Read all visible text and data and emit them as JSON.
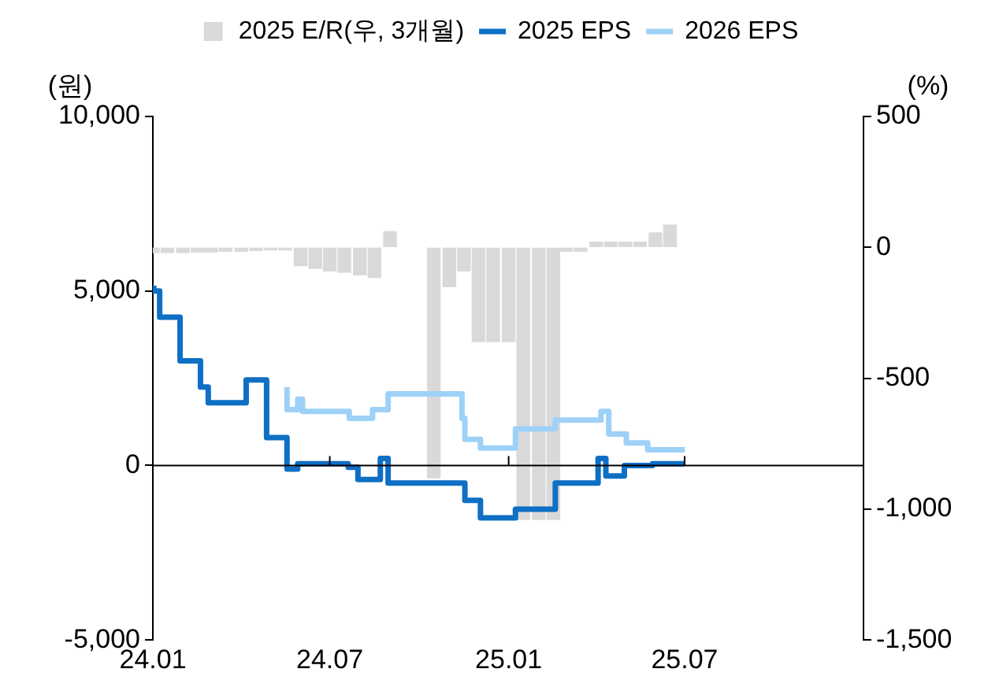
{
  "chart_data": {
    "type": "step",
    "ylabel": "(원)",
    "y2label": "(%)",
    "legend": "top",
    "xlim": [
      "2024-01-01",
      "2026-01-01"
    ],
    "xticks": [
      {
        "value": "2024-01-01",
        "label": "24.01"
      },
      {
        "value": "2024-07-01",
        "label": "24.07"
      },
      {
        "value": "2025-01-01",
        "label": "25.01"
      },
      {
        "value": "2025-07-01",
        "label": "25.07"
      }
    ],
    "ylim": [
      -5000,
      10000
    ],
    "yticks": [
      {
        "value": -5000,
        "label": "-5,000"
      },
      0,
      {
        "value": 5000,
        "label": "5,000"
      },
      {
        "value": 10000,
        "label": "10,000"
      }
    ],
    "y2lim": [
      -1500,
      500
    ],
    "y2ticks": [
      {
        "value": -1500,
        "label": "-1,500"
      },
      {
        "value": -1000,
        "label": "-1,000"
      },
      -500,
      0,
      500
    ],
    "ref_lines": [
      {
        "axis": "y",
        "value": 0,
        "color": "#000000"
      }
    ],
    "series": [
      {
        "name": "2025 E/R(우, 3개월)",
        "type": "bar",
        "axis": "y2",
        "color": "#d9d9d9",
        "x": [
          "2024-01-01",
          "2024-01-16",
          "2024-02-01",
          "2024-02-16",
          "2024-03-01",
          "2024-03-16",
          "2024-04-01",
          "2024-04-16",
          "2024-05-01",
          "2024-05-16",
          "2024-06-01",
          "2024-06-16",
          "2024-07-01",
          "2024-07-16",
          "2024-08-01",
          "2024-08-16",
          "2024-09-01",
          "2024-09-16",
          "2024-10-01",
          "2024-10-16",
          "2024-11-01",
          "2024-11-16",
          "2024-12-01",
          "2024-12-16",
          "2025-01-01",
          "2025-01-16",
          "2025-02-01",
          "2025-02-16",
          "2025-03-01",
          "2025-03-16",
          "2025-04-01",
          "2025-04-16",
          "2025-05-01",
          "2025-05-16",
          "2025-06-01",
          "2025-06-16"
        ],
        "values": [
          -20,
          -20,
          -20,
          -18,
          -18,
          -15,
          -15,
          -12,
          -10,
          -10,
          -70,
          -80,
          -90,
          -95,
          -105,
          -115,
          60,
          null,
          null,
          -880,
          -150,
          -90,
          -360,
          -360,
          -360,
          -1040,
          -1040,
          -1040,
          -15,
          -15,
          20,
          20,
          20,
          20,
          55,
          85
        ]
      },
      {
        "name": "2025 EPS",
        "color": "#0e6fc4",
        "x": [
          "2024-01-02",
          "2024-01-08",
          "2024-01-29",
          "2024-02-19",
          "2024-02-27",
          "2024-04-06",
          "2024-04-27",
          "2024-05-18",
          "2024-05-29",
          "2024-07-20",
          "2024-07-30",
          "2024-08-22",
          "2024-08-30",
          "2024-11-17",
          "2024-12-03",
          "2025-01-08",
          "2025-02-18",
          "2025-04-03",
          "2025-04-11",
          "2025-04-30",
          "2025-05-29",
          "2025-07-01"
        ],
        "values": [
          5150,
          5000,
          4250,
          3000,
          2250,
          1800,
          2450,
          800,
          -100,
          50,
          -50,
          -400,
          200,
          -500,
          -1000,
          -1500,
          -1250,
          -500,
          200,
          -300,
          0,
          50
        ]
      },
      {
        "name": "2026 EPS",
        "color": "#9dd1f7",
        "x": [
          "2024-05-18",
          "2024-05-29",
          "2024-06-03",
          "2024-07-21",
          "2024-08-14",
          "2024-08-30",
          "2024-11-14",
          "2024-11-17",
          "2024-12-03",
          "2025-01-08",
          "2025-02-18",
          "2025-04-06",
          "2025-04-14",
          "2025-05-02",
          "2025-05-24",
          "2025-06-02",
          "2025-07-01"
        ],
        "values": [
          2250,
          1600,
          1900,
          1550,
          1350,
          1600,
          2050,
          1350,
          750,
          500,
          1050,
          1300,
          1550,
          900,
          650,
          450,
          450
        ]
      }
    ]
  }
}
